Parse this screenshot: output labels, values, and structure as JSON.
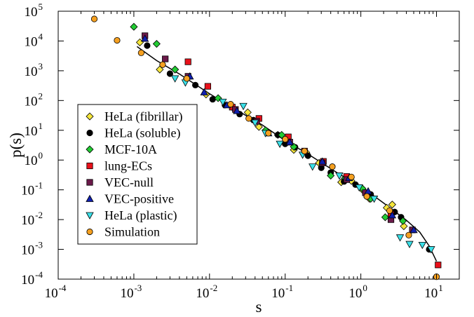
{
  "chart_data": {
    "type": "scatter",
    "xlabel": "s",
    "ylabel": "p(s)",
    "x_scale": "log",
    "y_scale": "log",
    "xlim": [
      0.0001,
      20
    ],
    "ylim": [
      0.0001,
      100000
    ],
    "x_ticks": [
      {
        "base": "10",
        "exp": "-4",
        "value": 0.0001
      },
      {
        "base": "10",
        "exp": "-3",
        "value": 0.001
      },
      {
        "base": "10",
        "exp": "-2",
        "value": 0.01
      },
      {
        "base": "10",
        "exp": "-1",
        "value": 0.1
      },
      {
        "base": "10",
        "exp": "0",
        "value": 1
      },
      {
        "base": "10",
        "exp": "1",
        "value": 10
      }
    ],
    "y_ticks": [
      {
        "base": "10",
        "exp": "-4",
        "value": 0.0001
      },
      {
        "base": "10",
        "exp": "-3",
        "value": 0.001
      },
      {
        "base": "10",
        "exp": "-2",
        "value": 0.01
      },
      {
        "base": "10",
        "exp": "-1",
        "value": 0.1
      },
      {
        "base": "10",
        "exp": "0",
        "value": 1
      },
      {
        "base": "10",
        "exp": "1",
        "value": 10
      },
      {
        "base": "10",
        "exp": "2",
        "value": 100
      },
      {
        "base": "10",
        "exp": "3",
        "value": 1000
      },
      {
        "base": "10",
        "exp": "4",
        "value": 10000
      },
      {
        "base": "10",
        "exp": "5",
        "value": 100000
      }
    ],
    "grid": false,
    "legend_position": "left",
    "fit_line": [
      [
        0.0011,
        6500
      ],
      [
        0.002,
        2200
      ],
      [
        0.004,
        780
      ],
      [
        0.01,
        170
      ],
      [
        0.02,
        58
      ],
      [
        0.05,
        15
      ],
      [
        0.1,
        4.5
      ],
      [
        0.2,
        1.6
      ],
      [
        0.5,
        0.36
      ],
      [
        1,
        0.13
      ],
      [
        2,
        0.036
      ],
      [
        4,
        0.0095
      ],
      [
        6,
        0.0038
      ],
      [
        8,
        0.0013
      ],
      [
        10,
        0.0004
      ]
    ],
    "series": [
      {
        "name": "HeLa (fibrillar)",
        "marker": "diamond",
        "color": "#f5e63c",
        "points": [
          [
            0.0012,
            9000
          ],
          [
            0.0022,
            1100
          ],
          [
            0.0035,
            1100
          ],
          [
            0.005,
            550
          ],
          [
            0.009,
            160
          ],
          [
            0.02,
            60
          ],
          [
            0.032,
            40
          ],
          [
            0.045,
            13
          ],
          [
            0.08,
            7
          ],
          [
            0.13,
            2.2
          ],
          [
            0.19,
            1.8
          ],
          [
            0.28,
            0.8
          ],
          [
            0.55,
            0.18
          ],
          [
            0.75,
            0.2
          ],
          [
            1.05,
            0.1
          ],
          [
            1.3,
            0.05
          ],
          [
            2.2,
            0.025
          ],
          [
            2.6,
            0.032
          ],
          [
            3.7,
            0.006
          ]
        ]
      },
      {
        "name": "HeLa (soluble)",
        "marker": "circle",
        "color": "#000000",
        "points": [
          [
            0.0015,
            7000
          ],
          [
            0.003,
            800
          ],
          [
            0.0065,
            330
          ],
          [
            0.011,
            110
          ],
          [
            0.016,
            70
          ],
          [
            0.025,
            35
          ],
          [
            0.038,
            22
          ],
          [
            0.08,
            7
          ],
          [
            0.1,
            3.5
          ],
          [
            0.135,
            2.7
          ],
          [
            0.2,
            1.4
          ],
          [
            0.3,
            0.55
          ],
          [
            0.4,
            0.38
          ],
          [
            0.6,
            0.19
          ],
          [
            0.85,
            0.15
          ],
          [
            1.35,
            0.07
          ],
          [
            2.8,
            0.018
          ],
          [
            3.4,
            0.012
          ],
          [
            8.0,
            0.001
          ]
        ]
      },
      {
        "name": "MCF-10A",
        "marker": "diamond",
        "color": "#22cc33",
        "points": [
          [
            0.001,
            30000
          ],
          [
            0.002,
            8000
          ],
          [
            0.0035,
            1100
          ],
          [
            0.013,
            120
          ],
          [
            0.055,
            10
          ],
          [
            0.09,
            7
          ],
          [
            0.13,
            2.8
          ],
          [
            0.4,
            0.3
          ],
          [
            0.62,
            0.25
          ],
          [
            1.05,
            0.11
          ],
          [
            1.35,
            0.05
          ],
          [
            2.1,
            0.012
          ],
          [
            3.6,
            0.009
          ]
        ]
      },
      {
        "name": "lung-ECs",
        "marker": "square",
        "color": "#e8101a",
        "points": [
          [
            0.0052,
            2000
          ],
          [
            0.0095,
            300
          ],
          [
            0.02,
            60
          ],
          [
            0.045,
            25
          ],
          [
            0.11,
            6
          ],
          [
            0.18,
            2
          ],
          [
            0.32,
            0.9
          ],
          [
            0.65,
            0.28
          ],
          [
            1.2,
            0.07
          ],
          [
            2.5,
            0.015
          ],
          [
            10.5,
            0.0003
          ]
        ]
      },
      {
        "name": "VEC-null",
        "marker": "square",
        "color": "#6b1a4a",
        "points": [
          [
            0.0014,
            15000
          ],
          [
            0.0026,
            2500
          ],
          [
            0.0052,
            650
          ],
          [
            0.022,
            50
          ],
          [
            0.042,
            20
          ],
          [
            0.115,
            4
          ],
          [
            0.31,
            0.8
          ],
          [
            0.65,
            0.22
          ],
          [
            1.15,
            0.08
          ],
          [
            2.5,
            0.01
          ],
          [
            4.8,
            0.0045
          ]
        ]
      },
      {
        "name": "VEC-positive",
        "marker": "triangle-up",
        "color": "#1020b0",
        "points": [
          [
            0.0014,
            12000
          ],
          [
            0.0055,
            650
          ],
          [
            0.0085,
            190
          ],
          [
            0.017,
            70
          ],
          [
            0.023,
            45
          ],
          [
            0.06,
            8
          ],
          [
            0.115,
            4
          ],
          [
            0.31,
            0.9
          ],
          [
            0.7,
            0.25
          ],
          [
            1.25,
            0.09
          ],
          [
            2.6,
            0.014
          ],
          [
            5.0,
            0.0045
          ]
        ]
      },
      {
        "name": "HeLa (plastic)",
        "marker": "triangle-down",
        "color": "#3ae0e8",
        "points": [
          [
            0.0035,
            550
          ],
          [
            0.0048,
            400
          ],
          [
            0.015,
            90
          ],
          [
            0.028,
            65
          ],
          [
            0.04,
            18
          ],
          [
            0.055,
            8
          ],
          [
            0.085,
            3.5
          ],
          [
            0.17,
            1.5
          ],
          [
            0.23,
            0.6
          ],
          [
            0.52,
            0.3
          ],
          [
            0.95,
            0.12
          ],
          [
            1.5,
            0.05
          ],
          [
            3.3,
            0.0025
          ],
          [
            4.4,
            0.0015
          ],
          [
            6.5,
            0.0014
          ],
          [
            8.5,
            0.001
          ]
        ]
      },
      {
        "name": "Simulation",
        "marker": "circle",
        "color": "#f5a020",
        "points": [
          [
            0.0003,
            55000
          ],
          [
            0.0006,
            10500
          ],
          [
            0.00125,
            4000
          ],
          [
            0.0024,
            1600
          ],
          [
            0.005,
            550
          ],
          [
            0.019,
            75
          ],
          [
            0.033,
            25
          ],
          [
            0.06,
            8
          ],
          [
            0.1,
            5
          ],
          [
            0.18,
            2
          ],
          [
            0.42,
            0.6
          ],
          [
            0.75,
            0.27
          ],
          [
            1.2,
            0.06
          ],
          [
            2.4,
            0.02
          ],
          [
            4.3,
            0.003
          ],
          [
            10.0,
            0.00012
          ]
        ]
      }
    ]
  }
}
